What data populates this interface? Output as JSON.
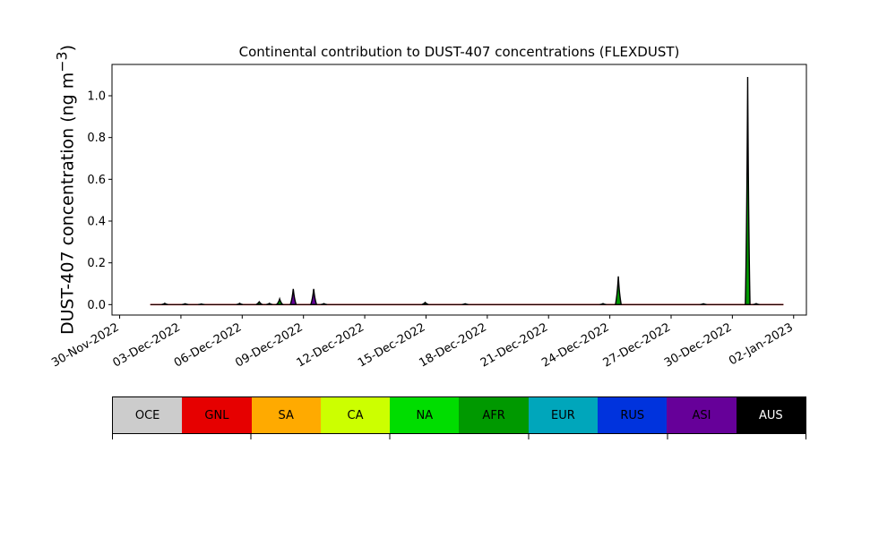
{
  "chart_data": {
    "type": "area",
    "title": "Continental contribution to DUST-407 concentrations (FLEXDUST)",
    "xlabel": "",
    "ylabel": "DUST-407 concentration (ng m",
    "ylabel_unit_sup": "−3",
    "ylabel_close": ")",
    "xlim": [
      "2022-11-29T15:00",
      "2023-01-02T15:00"
    ],
    "ylim": [
      -0.05,
      1.15
    ],
    "y_ticks": [
      0.0,
      0.2,
      0.4,
      0.6,
      0.8,
      1.0
    ],
    "y_tick_labels": [
      "0.0",
      "0.2",
      "0.4",
      "0.6",
      "0.8",
      "1.0"
    ],
    "x_ticks": [
      "2022-11-30",
      "2022-12-03",
      "2022-12-06",
      "2022-12-09",
      "2022-12-12",
      "2022-12-15",
      "2022-12-18",
      "2022-12-21",
      "2022-12-24",
      "2022-12-27",
      "2022-12-30",
      "2023-01-02"
    ],
    "x_tick_labels": [
      "30-Nov-2022",
      "03-Dec-2022",
      "06-Dec-2022",
      "09-Dec-2022",
      "12-Dec-2022",
      "15-Dec-2022",
      "18-Dec-2022",
      "21-Dec-2022",
      "24-Dec-2022",
      "27-Dec-2022",
      "30-Dec-2022",
      "02-Jan-2023"
    ],
    "time_range": [
      "2022-12-01T12:00",
      "2023-01-01T12:00"
    ],
    "peaks": [
      {
        "t": "2022-12-02T05:00",
        "total": 0.006
      },
      {
        "t": "2022-12-03T05:00",
        "total": 0.004
      },
      {
        "t": "2022-12-04T00:00",
        "total": 0.003
      },
      {
        "t": "2022-12-05T21:00",
        "total": 0.006
      },
      {
        "t": "2022-12-06T20:00",
        "total": 0.013
      },
      {
        "t": "2022-12-07T08:00",
        "total": 0.006
      },
      {
        "t": "2022-12-07T20:00",
        "total": 0.027
      },
      {
        "t": "2022-12-08T12:00",
        "total": 0.075
      },
      {
        "t": "2022-12-09T12:00",
        "total": 0.075
      },
      {
        "t": "2022-12-10T00:00",
        "total": 0.005
      },
      {
        "t": "2022-12-14T23:00",
        "total": 0.01
      },
      {
        "t": "2022-12-16T22:00",
        "total": 0.004
      },
      {
        "t": "2022-12-23T16:00",
        "total": 0.005
      },
      {
        "t": "2022-12-24T10:00",
        "total": 0.135
      },
      {
        "t": "2022-12-28T14:00",
        "total": 0.004
      },
      {
        "t": "2022-12-30T18:00",
        "total": 1.09
      },
      {
        "t": "2022-12-31T04:00",
        "total": 0.005
      }
    ],
    "legend": {
      "labels": [
        "OCE",
        "GNL",
        "SA",
        "CA",
        "NA",
        "AFR",
        "EUR",
        "RUS",
        "ASI",
        "AUS"
      ],
      "colors": [
        "#cccccc",
        "#e60000",
        "#ffaa00",
        "#ccff00",
        "#00dd00",
        "#009900",
        "#00a6bb",
        "#0033dd",
        "#660099",
        "#000000"
      ]
    },
    "fill_colors": {
      "main": "#009900",
      "secondary": "#660099",
      "outline": "#000000",
      "baseline": "#e60000"
    }
  }
}
